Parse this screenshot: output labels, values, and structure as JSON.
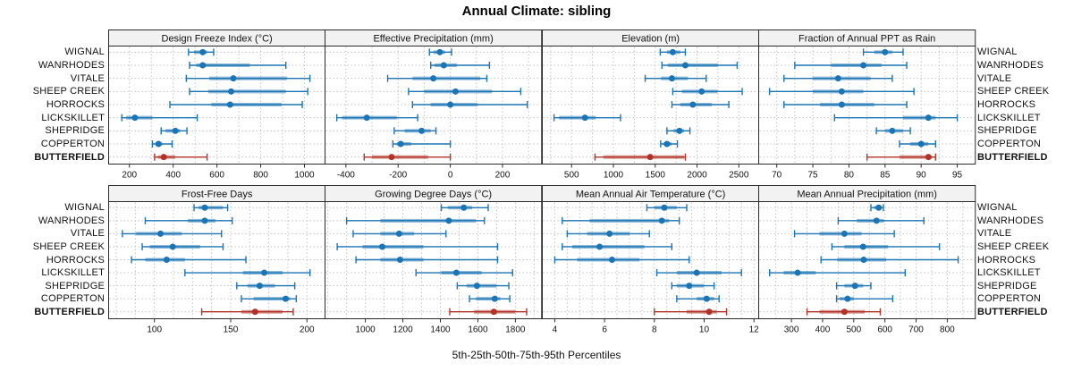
{
  "title": "Annual Climate: sibling",
  "footer": {
    "axis_caption": "5th-25th-50th-75th-95th Percentiles"
  },
  "sites": [
    "WIGNAL",
    "WANRHODES",
    "VITALE",
    "SHEEP CREEK",
    "HORROCKS",
    "LICKSKILLET",
    "SHEPRIDGE",
    "COPPERTON",
    "BUTTERFIELD"
  ],
  "highlight_site": "BUTTERFIELD",
  "percentile_levels": [
    5,
    25,
    50,
    75,
    95
  ],
  "colors": {
    "series_blue": "#1b74b4",
    "series_red": "#b33228",
    "header_bg": "#f2f2f2",
    "panel_border": "#2a2a2a",
    "grid": "#c4c4c4",
    "text": "#111111"
  },
  "chart_data": [
    {
      "type": "dot-interval",
      "title": "Design Freeze Index (°C)",
      "xlim": [
        105,
        1095
      ],
      "ticks": [
        200,
        400,
        600,
        800,
        1000
      ],
      "grid_step": 100,
      "series": [
        {
          "site": "WIGNAL",
          "percentiles": [
            470,
            495,
            535,
            555,
            585
          ]
        },
        {
          "site": "WANRHODES",
          "percentiles": [
            475,
            505,
            535,
            750,
            915
          ]
        },
        {
          "site": "VITALE",
          "percentiles": [
            460,
            565,
            675,
            920,
            1025
          ]
        },
        {
          "site": "SHEEP CREEK",
          "percentiles": [
            475,
            560,
            665,
            915,
            1015
          ]
        },
        {
          "site": "HORROCKS",
          "percentiles": [
            385,
            575,
            660,
            895,
            990
          ]
        },
        {
          "site": "LICKSKILLET",
          "percentiles": [
            165,
            185,
            225,
            305,
            510
          ]
        },
        {
          "site": "SHEPRIDGE",
          "percentiles": [
            345,
            365,
            410,
            432,
            463
          ]
        },
        {
          "site": "COPPERTON",
          "percentiles": [
            305,
            318,
            333,
            350,
            395
          ]
        },
        {
          "site": "BUTTERFIELD",
          "percentiles": [
            315,
            330,
            357,
            410,
            555
          ]
        }
      ]
    },
    {
      "type": "dot-interval",
      "title": "Effective Precipitation (mm)",
      "xlim": [
        -480,
        350
      ],
      "ticks": [
        -400,
        -200,
        0,
        200
      ],
      "grid_step": 100,
      "series": [
        {
          "site": "WIGNAL",
          "percentiles": [
            -80,
            -65,
            -40,
            -20,
            5
          ]
        },
        {
          "site": "WANRHODES",
          "percentiles": [
            -75,
            -60,
            -25,
            25,
            150
          ]
        },
        {
          "site": "VITALE",
          "percentiles": [
            -240,
            -145,
            -65,
            115,
            140
          ]
        },
        {
          "site": "SHEEP CREEK",
          "percentiles": [
            -160,
            -100,
            20,
            160,
            270
          ]
        },
        {
          "site": "HORROCKS",
          "percentiles": [
            -145,
            -75,
            0,
            105,
            295
          ]
        },
        {
          "site": "LICKSKILLET",
          "percentiles": [
            -435,
            -415,
            -320,
            -205,
            -125
          ]
        },
        {
          "site": "SHEPRIDGE",
          "percentiles": [
            -215,
            -175,
            -110,
            -75,
            -55
          ]
        },
        {
          "site": "COPPERTON",
          "percentiles": [
            -220,
            -205,
            -190,
            -150,
            0
          ]
        },
        {
          "site": "BUTTERFIELD",
          "percentiles": [
            -330,
            -300,
            -225,
            -85,
            0
          ]
        }
      ]
    },
    {
      "type": "dot-interval",
      "title": "Elevation (m)",
      "xlim": [
        150,
        2740
      ],
      "ticks": [
        500,
        1000,
        1500,
        2000,
        2500
      ],
      "grid_step": 250,
      "series": [
        {
          "site": "WIGNAL",
          "percentiles": [
            1560,
            1640,
            1710,
            1800,
            1860
          ]
        },
        {
          "site": "WANRHODES",
          "percentiles": [
            1580,
            1650,
            1860,
            2250,
            2480
          ]
        },
        {
          "site": "VITALE",
          "percentiles": [
            1380,
            1570,
            1700,
            1890,
            2110
          ]
        },
        {
          "site": "SHEEP CREEK",
          "percentiles": [
            1710,
            1820,
            2055,
            2245,
            2540
          ]
        },
        {
          "site": "HORROCKS",
          "percentiles": [
            1700,
            1800,
            1950,
            2175,
            2380
          ]
        },
        {
          "site": "LICKSKILLET",
          "percentiles": [
            290,
            350,
            660,
            790,
            1085
          ]
        },
        {
          "site": "SHEPRIDGE",
          "percentiles": [
            1640,
            1720,
            1790,
            1845,
            1915
          ]
        },
        {
          "site": "COPPERTON",
          "percentiles": [
            1565,
            1600,
            1640,
            1695,
            1765
          ]
        },
        {
          "site": "BUTTERFIELD",
          "percentiles": [
            780,
            880,
            1440,
            1845,
            1860
          ]
        }
      ]
    },
    {
      "type": "dot-interval",
      "title": "Fraction of Annual PPT as Rain",
      "xlim": [
        67.5,
        97.5
      ],
      "ticks": [
        70,
        75,
        80,
        85,
        90,
        95
      ],
      "grid_step": 2.5,
      "series": [
        {
          "site": "WIGNAL",
          "percentiles": [
            82,
            83.5,
            85,
            86,
            87.5
          ]
        },
        {
          "site": "WANRHODES",
          "percentiles": [
            72.5,
            77.5,
            82,
            84.5,
            88
          ]
        },
        {
          "site": "VITALE",
          "percentiles": [
            71,
            75,
            78.5,
            83,
            86
          ]
        },
        {
          "site": "SHEEP CREEK",
          "percentiles": [
            69,
            75,
            79,
            82,
            89
          ]
        },
        {
          "site": "HORROCKS",
          "percentiles": [
            71,
            76,
            79,
            83.5,
            88
          ]
        },
        {
          "site": "LICKSKILLET",
          "percentiles": [
            78,
            87.5,
            91,
            92,
            95
          ]
        },
        {
          "site": "SHEPRIDGE",
          "percentiles": [
            83.8,
            85,
            86,
            87.5,
            88.5
          ]
        },
        {
          "site": "COPPERTON",
          "percentiles": [
            87,
            88.5,
            90,
            91,
            92
          ]
        },
        {
          "site": "BUTTERFIELD",
          "percentiles": [
            82.5,
            87,
            91,
            91.5,
            92
          ]
        }
      ]
    },
    {
      "type": "dot-interval",
      "title": "Frost-Free Days",
      "xlim": [
        70,
        212
      ],
      "ticks": [
        100,
        150,
        200
      ],
      "grid_step": 12.5,
      "series": [
        {
          "site": "WIGNAL",
          "percentiles": [
            126,
            129,
            133,
            145,
            148
          ]
        },
        {
          "site": "WANRHODES",
          "percentiles": [
            94,
            122,
            133,
            140,
            151
          ]
        },
        {
          "site": "VITALE",
          "percentiles": [
            79,
            88,
            104,
            118,
            144
          ]
        },
        {
          "site": "SHEEP CREEK",
          "percentiles": [
            92,
            97,
            112,
            130,
            145
          ]
        },
        {
          "site": "HORROCKS",
          "percentiles": [
            85,
            94,
            108,
            120,
            160
          ]
        },
        {
          "site": "LICKSKILLET",
          "percentiles": [
            120,
            158,
            172,
            184,
            202
          ]
        },
        {
          "site": "SHEPRIDGE",
          "percentiles": [
            154,
            161,
            169,
            179,
            192
          ]
        },
        {
          "site": "COPPERTON",
          "percentiles": [
            157,
            165,
            186,
            189,
            193
          ]
        },
        {
          "site": "BUTTERFIELD",
          "percentiles": [
            131,
            157,
            166,
            184,
            191
          ]
        }
      ]
    },
    {
      "type": "dot-interval",
      "title": "Growing Degree Days (°C)",
      "xlim": [
        785,
        1940
      ],
      "ticks": [
        1000,
        1200,
        1400,
        1600,
        1800
      ],
      "grid_step": 100,
      "series": [
        {
          "site": "WIGNAL",
          "percentiles": [
            1405,
            1440,
            1525,
            1570,
            1655
          ]
        },
        {
          "site": "WANRHODES",
          "percentiles": [
            900,
            1080,
            1445,
            1590,
            1635
          ]
        },
        {
          "site": "VITALE",
          "percentiles": [
            935,
            1080,
            1180,
            1260,
            1430
          ]
        },
        {
          "site": "SHEEP CREEK",
          "percentiles": [
            850,
            985,
            1090,
            1310,
            1705
          ]
        },
        {
          "site": "HORROCKS",
          "percentiles": [
            950,
            1080,
            1185,
            1310,
            1705
          ]
        },
        {
          "site": "LICKSKILLET",
          "percentiles": [
            1270,
            1405,
            1485,
            1620,
            1785
          ]
        },
        {
          "site": "SHEPRIDGE",
          "percentiles": [
            1490,
            1540,
            1595,
            1700,
            1765
          ]
        },
        {
          "site": "COPPERTON",
          "percentiles": [
            1555,
            1590,
            1690,
            1720,
            1770
          ]
        },
        {
          "site": "BUTTERFIELD",
          "percentiles": [
            1450,
            1580,
            1685,
            1800,
            1860
          ]
        }
      ]
    },
    {
      "type": "dot-interval",
      "title": "Mean Annual Air Temperature (°C)",
      "xlim": [
        3.5,
        12.2
      ],
      "ticks": [
        4,
        6,
        8,
        10,
        12
      ],
      "grid_step": 0.5,
      "series": [
        {
          "site": "WIGNAL",
          "percentiles": [
            7.7,
            8.0,
            8.4,
            8.9,
            9.3
          ]
        },
        {
          "site": "WANRHODES",
          "percentiles": [
            4.3,
            5.4,
            8.3,
            8.6,
            9.0
          ]
        },
        {
          "site": "VITALE",
          "percentiles": [
            4.5,
            5.3,
            6.2,
            7.0,
            7.8
          ]
        },
        {
          "site": "SHEEP CREEK",
          "percentiles": [
            4.3,
            4.7,
            5.8,
            7.6,
            8.7
          ]
        },
        {
          "site": "HORROCKS",
          "percentiles": [
            4.0,
            4.9,
            6.3,
            7.4,
            9.4
          ]
        },
        {
          "site": "LICKSKILLET",
          "percentiles": [
            8.1,
            8.9,
            9.7,
            10.7,
            11.5
          ]
        },
        {
          "site": "SHEPRIDGE",
          "percentiles": [
            8.7,
            8.9,
            9.4,
            10.0,
            10.4
          ]
        },
        {
          "site": "COPPERTON",
          "percentiles": [
            8.9,
            9.7,
            10.1,
            10.4,
            10.6
          ]
        },
        {
          "site": "BUTTERFIELD",
          "percentiles": [
            8.0,
            9.3,
            10.2,
            10.5,
            10.9
          ]
        }
      ]
    },
    {
      "type": "dot-interval",
      "title": "Mean Annual Precipitation (mm)",
      "xlim": [
        195,
        890
      ],
      "ticks": [
        300,
        400,
        500,
        600,
        700,
        800
      ],
      "grid_step": 50,
      "series": [
        {
          "site": "WIGNAL",
          "percentiles": [
            555,
            565,
            580,
            590,
            595
          ]
        },
        {
          "site": "WANRHODES",
          "percentiles": [
            450,
            510,
            573,
            597,
            725
          ]
        },
        {
          "site": "VITALE",
          "percentiles": [
            310,
            390,
            470,
            525,
            630
          ]
        },
        {
          "site": "SHEEP CREEK",
          "percentiles": [
            430,
            470,
            530,
            610,
            775
          ]
        },
        {
          "site": "HORROCKS",
          "percentiles": [
            395,
            447,
            532,
            604,
            835
          ]
        },
        {
          "site": "LICKSKILLET",
          "percentiles": [
            230,
            275,
            320,
            378,
            665
          ]
        },
        {
          "site": "SHEPRIDGE",
          "percentiles": [
            445,
            470,
            504,
            530,
            555
          ]
        },
        {
          "site": "COPPERTON",
          "percentiles": [
            445,
            455,
            480,
            500,
            625
          ]
        },
        {
          "site": "BUTTERFIELD",
          "percentiles": [
            350,
            390,
            470,
            535,
            585
          ]
        }
      ]
    }
  ]
}
